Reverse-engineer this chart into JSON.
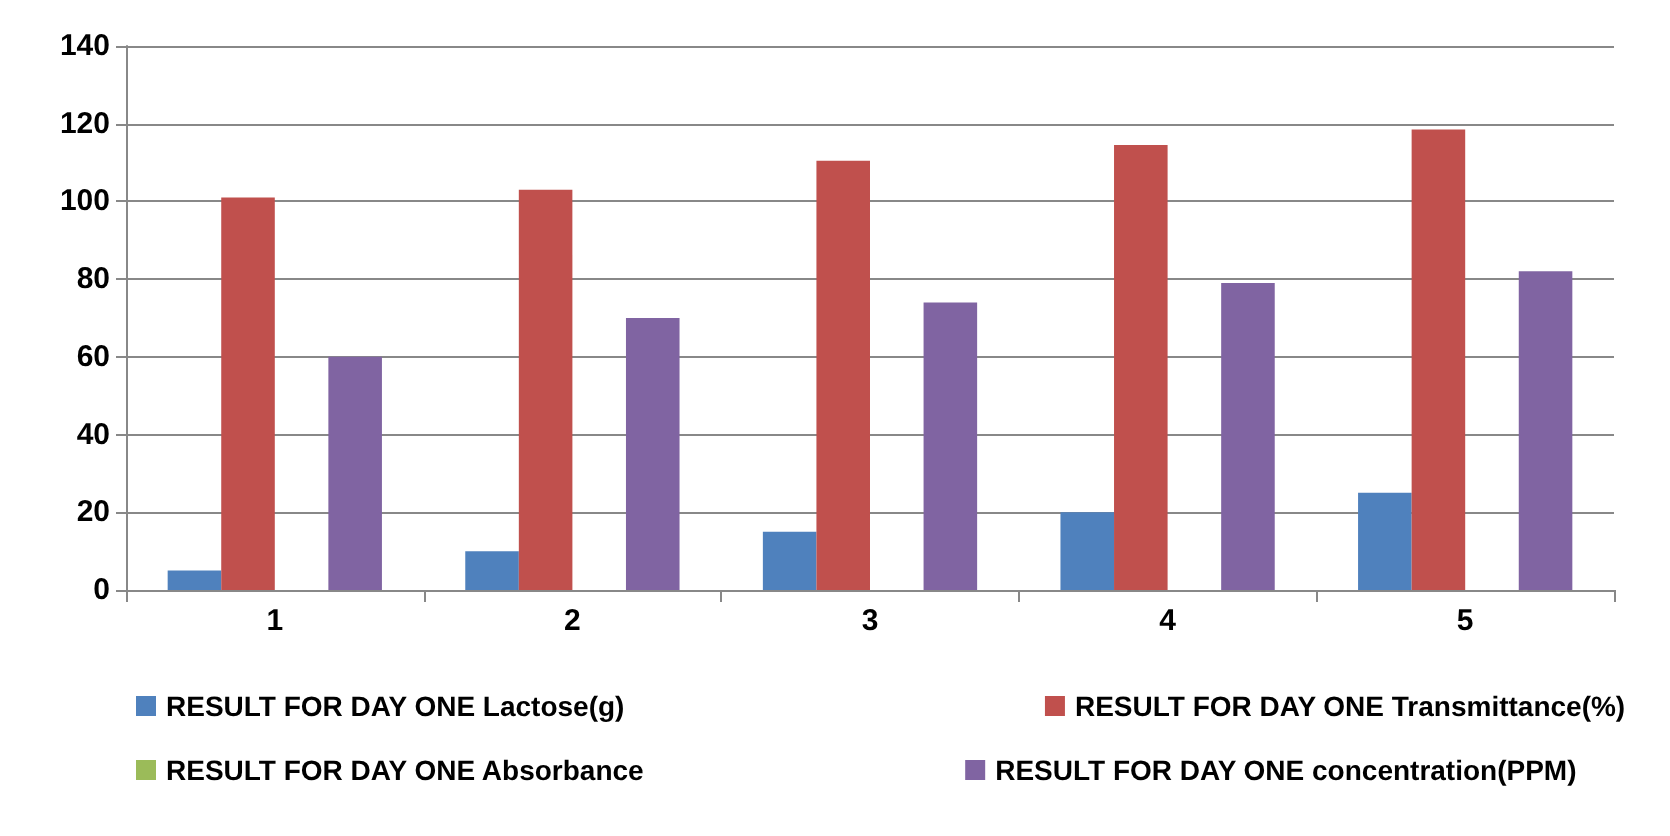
{
  "chart_data": {
    "type": "bar",
    "categories": [
      "1",
      "2",
      "3",
      "4",
      "5"
    ],
    "series": [
      {
        "name": "RESULT FOR DAY ONE Lactose(g)",
        "color": "#4f81bd",
        "values": [
          5,
          10,
          15,
          20,
          25
        ]
      },
      {
        "name": "RESULT FOR DAY ONE Transmittance(%)",
        "color": "#c0504d",
        "values": [
          101,
          103,
          110.5,
          114.5,
          118.5
        ]
      },
      {
        "name": "RESULT FOR DAY ONE Absorbance",
        "color": "#9bbb59",
        "values": [
          0,
          0,
          0,
          0,
          0
        ]
      },
      {
        "name": "RESULT FOR DAY ONE concentration(PPM)",
        "color": "#8064a2",
        "values": [
          60,
          70,
          74,
          79,
          82
        ]
      }
    ],
    "ylim": [
      0,
      140
    ],
    "yticks": [
      0,
      20,
      40,
      60,
      80,
      100,
      120,
      140
    ],
    "grid": "y",
    "legend": "bottom"
  }
}
